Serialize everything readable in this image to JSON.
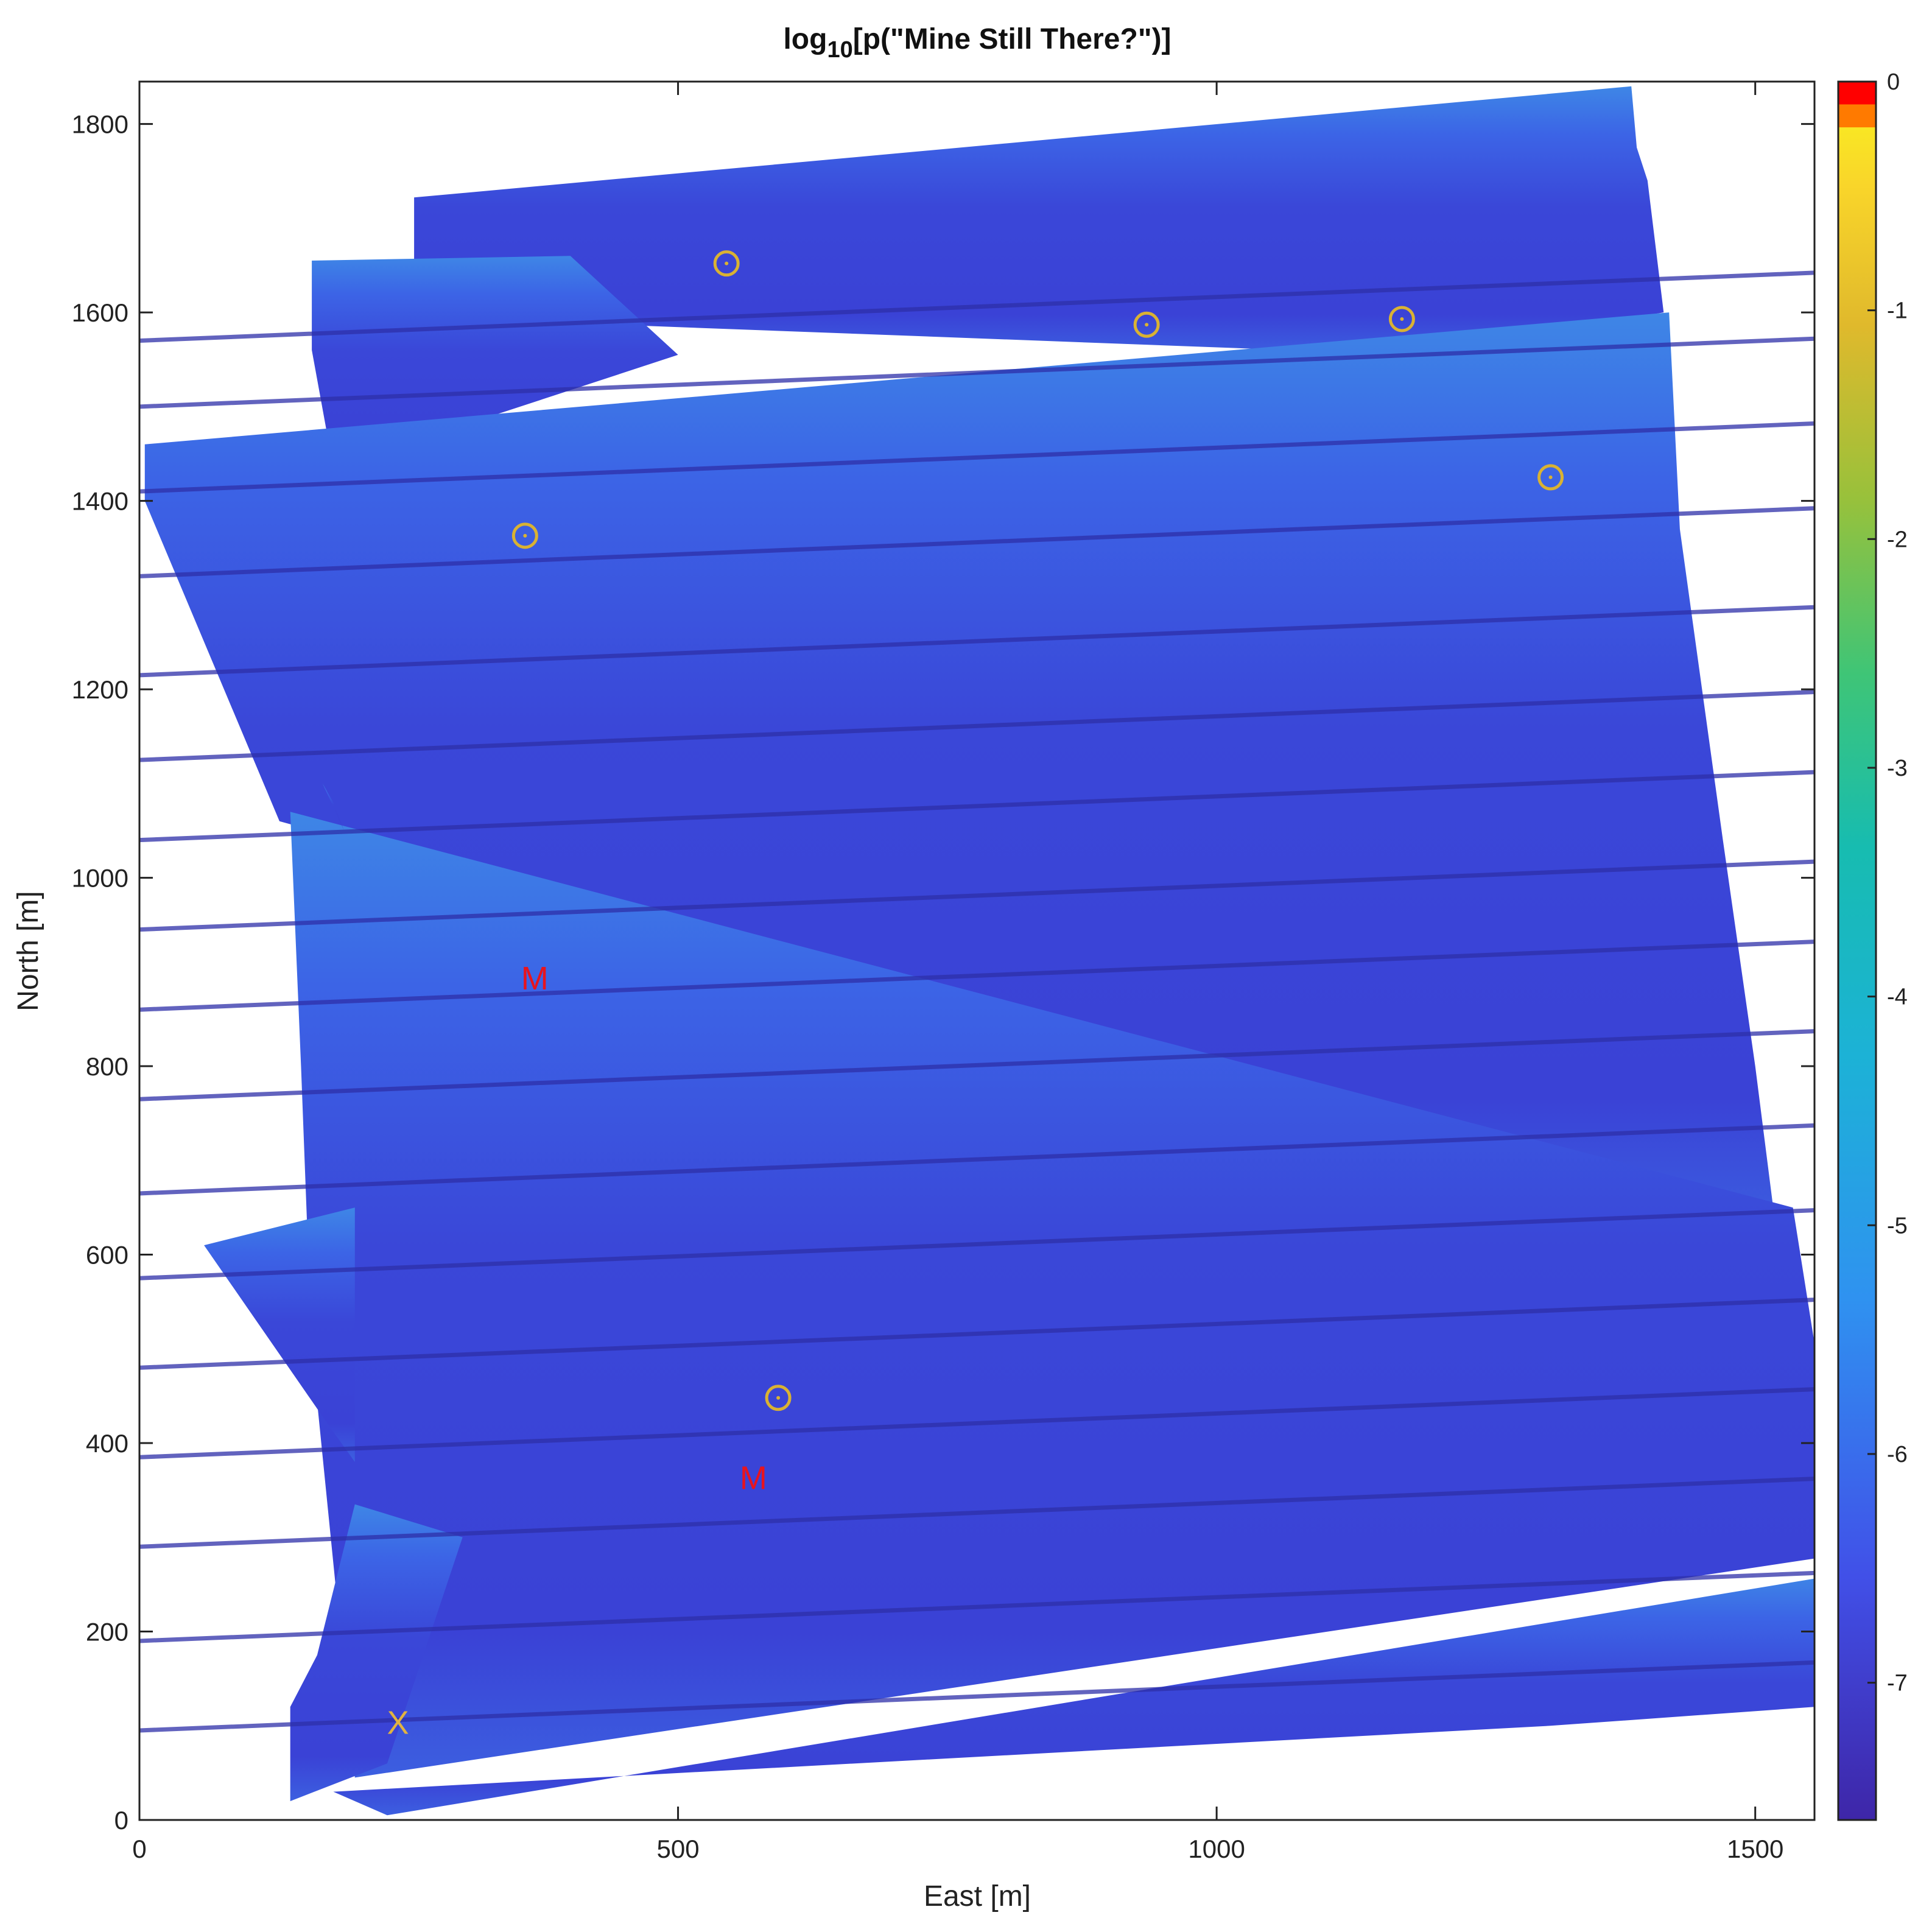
{
  "chart_data": {
    "type": "heatmap",
    "title": "log10[p(\"Mine Still There?\")]",
    "title_parts": {
      "base": "log",
      "subscript": "10",
      "rest": "[p(\"Mine Still There?\")]"
    },
    "xlabel": "East [m]",
    "ylabel": "North [m]",
    "xlim": [
      0,
      1555
    ],
    "ylim": [
      0,
      1845
    ],
    "xticks": [
      0,
      500,
      1000,
      1500
    ],
    "yticks": [
      0,
      200,
      400,
      600,
      800,
      1000,
      1200,
      1400,
      1600,
      1800
    ],
    "colorbar": {
      "range": [
        -7.6,
        0
      ],
      "ticks": [
        0,
        -1,
        -2,
        -3,
        -4,
        -5,
        -6,
        -7
      ],
      "colormap": "parula-like",
      "top_bands": [
        {
          "from": -0.1,
          "to": 0,
          "color": "#ff0000"
        },
        {
          "from": -0.2,
          "to": -0.1,
          "color": "#ff7a00"
        }
      ]
    },
    "survey_polygons": [
      [
        [
          255,
          1722
        ],
        [
          1385,
          1840
        ],
        [
          1390,
          1775
        ],
        [
          1400,
          1740
        ],
        [
          1415,
          1600
        ],
        [
          1185,
          1555
        ],
        [
          255,
          1595
        ]
      ],
      [
        [
          160,
          1655
        ],
        [
          400,
          1660
        ],
        [
          500,
          1555
        ],
        [
          180,
          1435
        ],
        [
          160,
          1560
        ]
      ],
      [
        [
          5,
          1460
        ],
        [
          1420,
          1600
        ],
        [
          1430,
          1370
        ],
        [
          1470,
          1040
        ],
        [
          1500,
          800
        ],
        [
          1520,
          620
        ],
        [
          130,
          1060
        ],
        [
          5,
          1400
        ]
      ],
      [
        [
          140,
          1070
        ],
        [
          1535,
          650
        ],
        [
          1560,
          470
        ],
        [
          1570,
          280
        ],
        [
          200,
          45
        ],
        [
          160,
          500
        ],
        [
          150,
          800
        ]
      ],
      [
        [
          60,
          610
        ],
        [
          200,
          650
        ],
        [
          200,
          380
        ],
        [
          175,
          420
        ]
      ],
      [
        [
          170,
          1100
        ],
        [
          180,
          1080
        ],
        [
          190,
          1050
        ]
      ],
      [
        [
          200,
          335
        ],
        [
          300,
          300
        ],
        [
          230,
          60
        ],
        [
          140,
          20
        ],
        [
          140,
          120
        ],
        [
          165,
          175
        ]
      ],
      [
        [
          180,
          30
        ],
        [
          1310,
          100
        ],
        [
          1555,
          120
        ],
        [
          1575,
          260
        ],
        [
          230,
          5
        ]
      ]
    ],
    "pass_lines_north": [
      1570,
      1500,
      1410,
      1320,
      1215,
      1125,
      1040,
      945,
      860,
      765,
      665,
      575,
      480,
      385,
      290,
      190,
      95
    ],
    "pass_slope_deg": 5.3,
    "markers": [
      {
        "symbol": "O",
        "x": 545,
        "y": 1652,
        "color": "#d9b233"
      },
      {
        "symbol": "O",
        "x": 935,
        "y": 1587,
        "color": "#d9b233"
      },
      {
        "symbol": "O",
        "x": 1172,
        "y": 1593,
        "color": "#d9b233"
      },
      {
        "symbol": "O",
        "x": 1310,
        "y": 1425,
        "color": "#d9b233"
      },
      {
        "symbol": "O",
        "x": 358,
        "y": 1363,
        "color": "#d9b233"
      },
      {
        "symbol": "O",
        "x": 593,
        "y": 448,
        "color": "#d9b233"
      },
      {
        "symbol": "M",
        "x": 367,
        "y": 893,
        "color": "#e8141e"
      },
      {
        "symbol": "M",
        "x": 570,
        "y": 363,
        "color": "#e8141e"
      },
      {
        "symbol": "X",
        "x": 240,
        "y": 103,
        "color": "#e0b341"
      }
    ],
    "colors": {
      "field_dark": "#3a3fd6",
      "field_mid": "#3c55e6",
      "field_light": "#3e8ce8",
      "stripe": "#2d2fa8",
      "frame": "#222222"
    }
  }
}
